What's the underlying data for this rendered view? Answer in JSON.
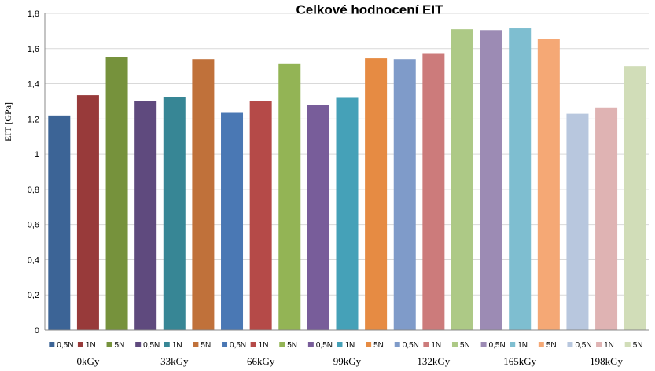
{
  "chart_data": {
    "type": "bar",
    "title": "Celkové hodnocení EIT",
    "ylabel": "EIT [GPa]",
    "ylim": [
      0,
      1.8
    ],
    "yticks": [
      "0",
      "0,2",
      "0,4",
      "0,6",
      "0,8",
      "1",
      "1,2",
      "1,4",
      "1,6",
      "1,8"
    ],
    "grid": true,
    "legend_position": "bottom",
    "groups": [
      "0kGy",
      "33kGy",
      "66kGy",
      "99kGy",
      "132kGy",
      "165kGy",
      "198kGy"
    ],
    "series_labels": [
      "0,5N",
      "1N",
      "5N"
    ],
    "bars": [
      {
        "group": "0kGy",
        "label": "0,5N",
        "value": 1.22,
        "color": "#3C6496"
      },
      {
        "group": "0kGy",
        "label": "1N",
        "value": 1.335,
        "color": "#983A3A"
      },
      {
        "group": "0kGy",
        "label": "5N",
        "value": 1.55,
        "color": "#76923C"
      },
      {
        "group": "33kGy",
        "label": "0,5N",
        "value": 1.3,
        "color": "#5F4A7E"
      },
      {
        "group": "33kGy",
        "label": "1N",
        "value": 1.325,
        "color": "#378695"
      },
      {
        "group": "33kGy",
        "label": "5N",
        "value": 1.54,
        "color": "#C0713A"
      },
      {
        "group": "66kGy",
        "label": "0,5N",
        "value": 1.235,
        "color": "#4A78B4"
      },
      {
        "group": "66kGy",
        "label": "1N",
        "value": 1.3,
        "color": "#B54A48"
      },
      {
        "group": "66kGy",
        "label": "5N",
        "value": 1.515,
        "color": "#93B455"
      },
      {
        "group": "99kGy",
        "label": "0,5N",
        "value": 1.28,
        "color": "#785D9A"
      },
      {
        "group": "99kGy",
        "label": "1N",
        "value": 1.32,
        "color": "#45A1B8"
      },
      {
        "group": "99kGy",
        "label": "5N",
        "value": 1.545,
        "color": "#E68B43"
      },
      {
        "group": "132kGy",
        "label": "0,5N",
        "value": 1.54,
        "color": "#7F9BC9"
      },
      {
        "group": "132kGy",
        "label": "1N",
        "value": 1.57,
        "color": "#CC7B7B"
      },
      {
        "group": "132kGy",
        "label": "5N",
        "value": 1.71,
        "color": "#ADC986"
      },
      {
        "group": "165kGy",
        "label": "0,5N",
        "value": 1.705,
        "color": "#9C8BB4"
      },
      {
        "group": "165kGy",
        "label": "1N",
        "value": 1.715,
        "color": "#7EBED0"
      },
      {
        "group": "165kGy",
        "label": "5N",
        "value": 1.655,
        "color": "#F5A875"
      },
      {
        "group": "198kGy",
        "label": "0,5N",
        "value": 1.23,
        "color": "#B8C7DE"
      },
      {
        "group": "198kGy",
        "label": "1N",
        "value": 1.265,
        "color": "#DFB3B3"
      },
      {
        "group": "198kGy",
        "label": "5N",
        "value": 1.5,
        "color": "#D1DDB8"
      }
    ]
  }
}
